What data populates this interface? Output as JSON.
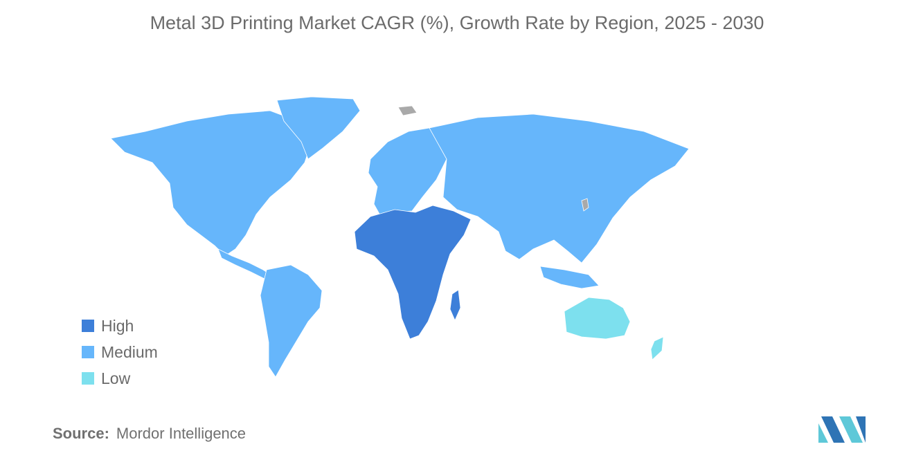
{
  "title": "Metal 3D Printing Market CAGR (%), Growth Rate by Region, 2025 - 2030",
  "legend": [
    {
      "label": "High",
      "color": "#3d7fd9"
    },
    {
      "label": "Medium",
      "color": "#66b6fb"
    },
    {
      "label": "Low",
      "color": "#7de0ee"
    }
  ],
  "regions": {
    "north_america": {
      "level": "Medium"
    },
    "south_america": {
      "level": "Medium"
    },
    "europe": {
      "level": "Medium"
    },
    "asia": {
      "level": "Medium"
    },
    "middle_east_africa": {
      "level": "High"
    },
    "oceania": {
      "level": "Low"
    }
  },
  "no_data_color": "#a9a9a9",
  "source": {
    "label": "Source:",
    "value": "Mordor Intelligence"
  }
}
